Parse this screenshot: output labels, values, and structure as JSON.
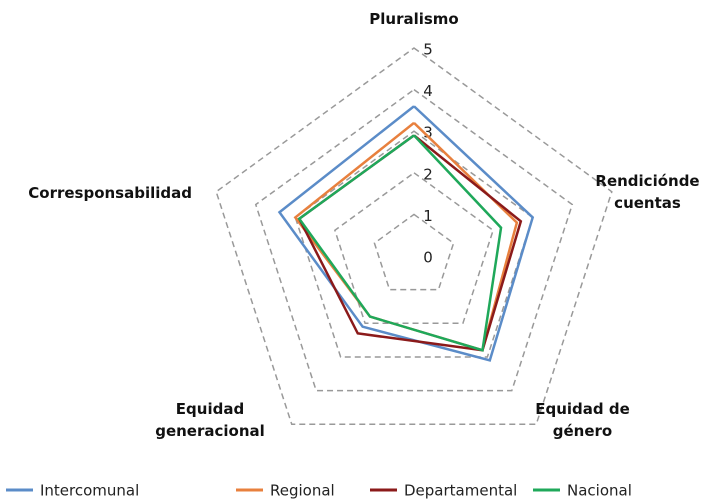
{
  "chart_data": {
    "type": "radar",
    "categories": [
      "Pluralismo",
      "Rendiciónde cuentas",
      "Equidad de género",
      "Equidad generacional",
      "Corresponsabilidad"
    ],
    "series": [
      {
        "name": "Intercomunal",
        "color": "#5b8cc8",
        "values": [
          3.6,
          3.0,
          3.1,
          2.1,
          3.4
        ]
      },
      {
        "name": "Regional",
        "color": "#e8803e",
        "values": [
          3.2,
          2.6,
          2.8,
          1.8,
          3.0
        ]
      },
      {
        "name": "Departamental",
        "color": "#8b1a1a",
        "values": [
          2.9,
          2.7,
          2.8,
          2.3,
          2.9
        ]
      },
      {
        "name": "Nacional",
        "color": "#1fa85a",
        "values": [
          2.9,
          2.2,
          2.8,
          1.8,
          2.9
        ]
      }
    ],
    "ylim": [
      0,
      5
    ],
    "yticks": [
      0,
      1,
      2,
      3,
      4,
      5
    ],
    "grid": true
  }
}
